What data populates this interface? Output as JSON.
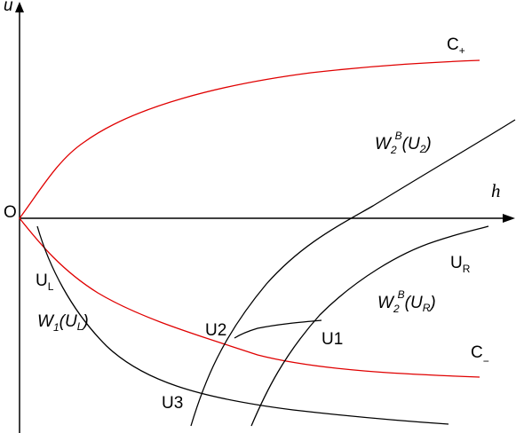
{
  "axes": {
    "u": "u",
    "h": "h",
    "origin": "O"
  },
  "labels": {
    "c_plus": {
      "base": "C",
      "sub": "+"
    },
    "c_minus": {
      "base": "C",
      "sub": "−"
    },
    "w2_u2": {
      "base": "W",
      "sub": "2",
      "sup": "B",
      "arg": "(U",
      "arg_sub": "2",
      "close": ")"
    },
    "w2_ur": {
      "base": "W",
      "sub": "2",
      "sup": "B",
      "arg": "(U",
      "arg_sub": "R",
      "close": ")"
    },
    "w1_ul": {
      "base": "W",
      "sub": "1",
      "arg": "(U",
      "arg_sub": "L",
      "close": ")"
    },
    "ul": {
      "base": "U",
      "sub": "L"
    },
    "ur": {
      "base": "U",
      "sub": "R"
    },
    "u1": "U1",
    "u2": "U2",
    "u3": "U3"
  }
}
